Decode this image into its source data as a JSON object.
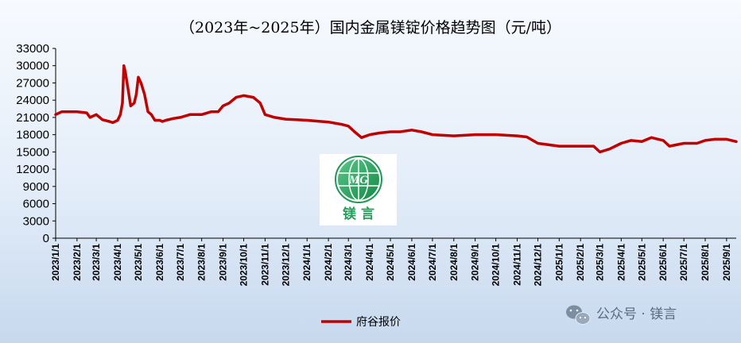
{
  "chart_data": {
    "type": "line",
    "title": "（2023年~2025年）国内金属镁锭价格趋势图（元/吨）",
    "xlabel": "",
    "ylabel": "",
    "ylim": [
      0,
      33000
    ],
    "y_ticks": [
      0,
      3000,
      6000,
      9000,
      12000,
      15000,
      18000,
      21000,
      24000,
      27000,
      30000,
      33000
    ],
    "x_ticks": [
      "2023/1/1",
      "2023/2/1",
      "2023/3/1",
      "2023/4/1",
      "2023/5/1",
      "2023/6/1",
      "2023/7/1",
      "2023/8/1",
      "2023/9/1",
      "2023/10/1",
      "2023/11/1",
      "2023/12/1",
      "2024/1/1",
      "2024/2/1",
      "2024/3/1",
      "2024/4/1",
      "2024/5/1",
      "2024/6/1",
      "2024/7/1",
      "2024/8/1",
      "2024/9/1",
      "2024/10/1",
      "2024/11/1",
      "2024/12/1",
      "2025/1/1",
      "2025/2/1",
      "2025/3/1",
      "2025/4/1",
      "2025/5/1",
      "2025/6/1",
      "2025/7/1",
      "2025/8/1",
      "2025/9/1"
    ],
    "legend_position": "bottom",
    "grid": false,
    "series": [
      {
        "name": "府谷报价",
        "color": "#c00000",
        "x": [
          "2023/1/1",
          "2023/1/10",
          "2023/2/1",
          "2023/2/15",
          "2023/2/20",
          "2023/3/1",
          "2023/3/10",
          "2023/3/20",
          "2023/3/25",
          "2023/4/1",
          "2023/4/5",
          "2023/4/8",
          "2023/4/10",
          "2023/4/12",
          "2023/4/16",
          "2023/4/20",
          "2023/4/25",
          "2023/4/28",
          "2023/5/1",
          "2023/5/5",
          "2023/5/10",
          "2023/5/15",
          "2023/5/20",
          "2023/5/25",
          "2023/6/1",
          "2023/6/5",
          "2023/6/10",
          "2023/6/20",
          "2023/7/1",
          "2023/7/15",
          "2023/8/1",
          "2023/8/15",
          "2023/8/25",
          "2023/9/1",
          "2023/9/10",
          "2023/9/20",
          "2023/10/1",
          "2023/10/15",
          "2023/10/25",
          "2023/11/1",
          "2023/11/15",
          "2023/12/1",
          "2024/1/1",
          "2024/2/1",
          "2024/2/20",
          "2024/3/1",
          "2024/3/10",
          "2024/3/20",
          "2024/4/1",
          "2024/4/15",
          "2024/5/1",
          "2024/5/15",
          "2024/6/1",
          "2024/6/15",
          "2024/7/1",
          "2024/8/1",
          "2024/9/1",
          "2024/10/1",
          "2024/11/1",
          "2024/11/15",
          "2024/12/1",
          "2025/1/1",
          "2025/2/1",
          "2025/2/20",
          "2025/3/1",
          "2025/3/15",
          "2025/4/1",
          "2025/4/15",
          "2025/5/1",
          "2025/5/15",
          "2025/6/1",
          "2025/6/10",
          "2025/7/1",
          "2025/7/20",
          "2025/8/1",
          "2025/8/15",
          "2025/9/1",
          "2025/9/15"
        ],
        "values": [
          21500,
          22000,
          22000,
          21800,
          21000,
          21500,
          20600,
          20300,
          20100,
          20500,
          21500,
          23500,
          30000,
          29000,
          26000,
          23000,
          23500,
          25000,
          28000,
          27000,
          25000,
          22000,
          21500,
          20500,
          20500,
          20300,
          20500,
          20800,
          21000,
          21500,
          21500,
          22000,
          22000,
          23000,
          23500,
          24500,
          24800,
          24500,
          23500,
          21500,
          21000,
          20700,
          20500,
          20200,
          19800,
          19500,
          18500,
          17500,
          18000,
          18300,
          18500,
          18500,
          18800,
          18500,
          18000,
          17800,
          18000,
          18000,
          17800,
          17600,
          16500,
          16000,
          16000,
          16000,
          15000,
          15500,
          16500,
          17000,
          16800,
          17500,
          17000,
          16000,
          16500,
          16500,
          17000,
          17200,
          17200,
          16800
        ]
      }
    ]
  },
  "logo": {
    "text": "镁 言",
    "emblem_text": "MG"
  },
  "watermark": {
    "text": "公众号 · 镁言"
  }
}
